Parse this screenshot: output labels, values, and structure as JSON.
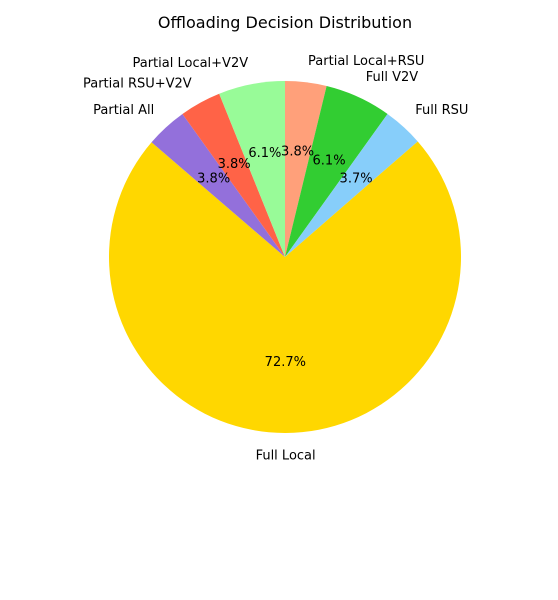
{
  "chart_data": {
    "type": "pie",
    "title": "Offloading Decision Distribution",
    "start_angle_deg": 90,
    "direction": "clockwise",
    "slices": [
      {
        "label": "Partial Local+RSU",
        "percent": 3.8,
        "percent_label": "3.8%",
        "color": "#FFA07A"
      },
      {
        "label": "Full V2V",
        "percent": 6.1,
        "percent_label": "6.1%",
        "color": "#32CD32"
      },
      {
        "label": "Full RSU",
        "percent": 3.7,
        "percent_label": "3.7%",
        "color": "#87CEFA"
      },
      {
        "label": "Full Local",
        "percent": 72.7,
        "percent_label": "72.7%",
        "color": "#FFD700"
      },
      {
        "label": "Partial All",
        "percent": 3.8,
        "percent_label": "3.8%",
        "color": "#9370DB"
      },
      {
        "label": "Partial RSU+V2V",
        "percent": 3.8,
        "percent_label": "3.8%",
        "color": "#FF6347"
      },
      {
        "label": "Partial Local+V2V",
        "percent": 6.1,
        "percent_label": "6.1%",
        "color": "#98FB98"
      }
    ]
  }
}
